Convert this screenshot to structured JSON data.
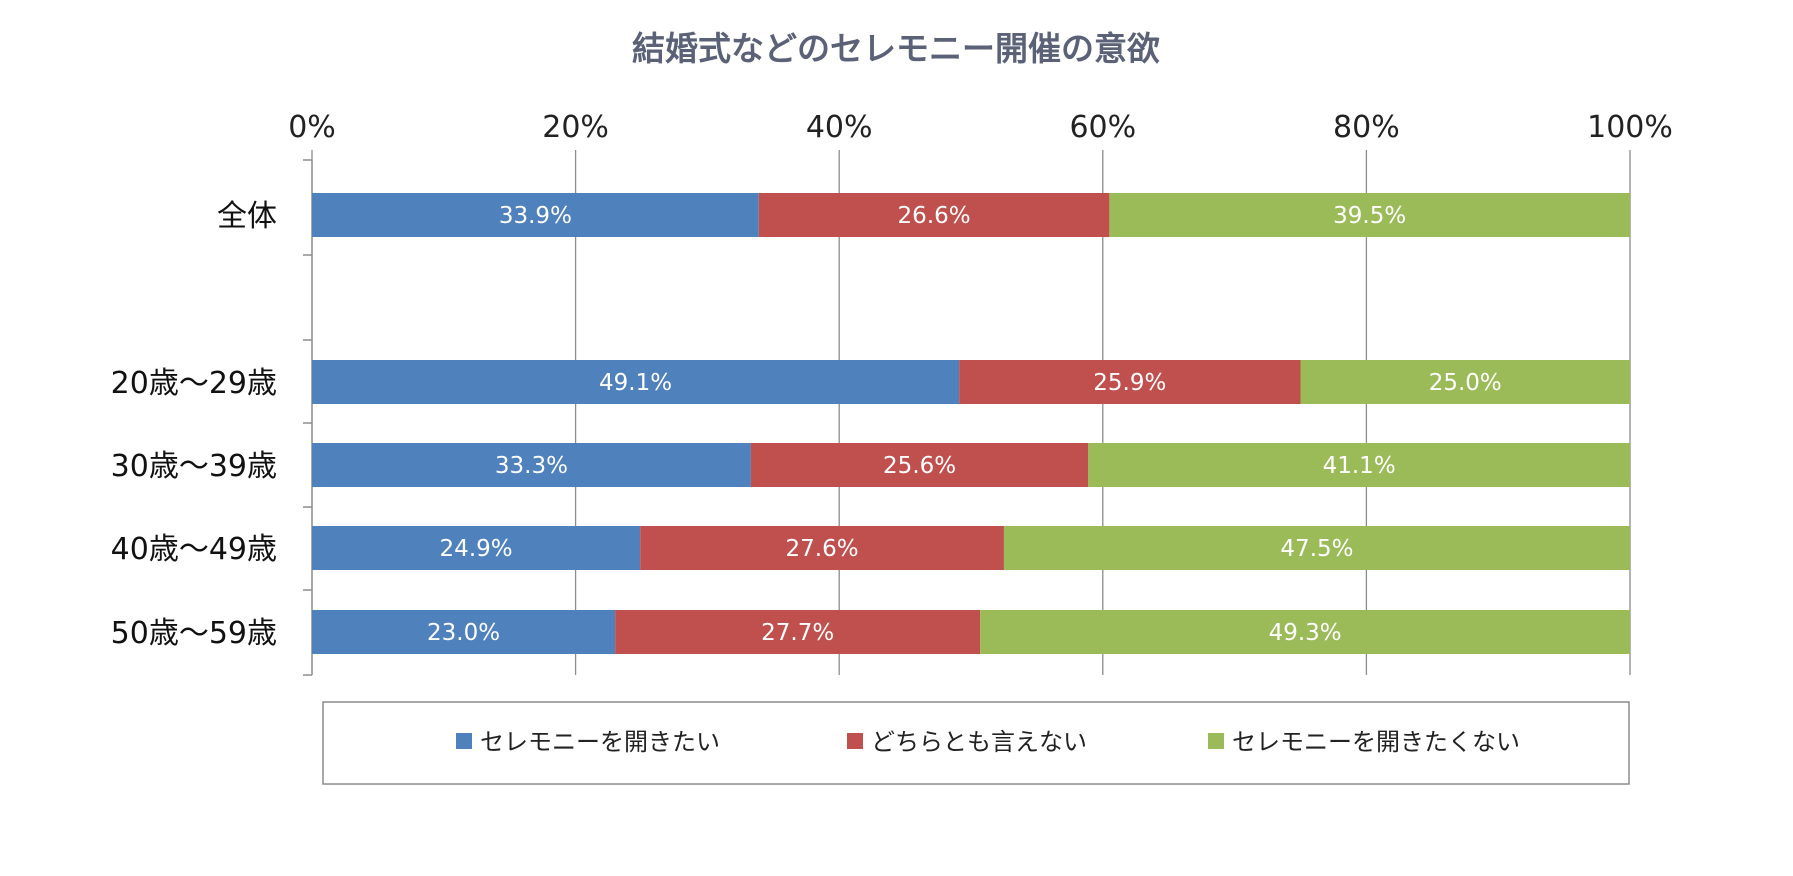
{
  "chart_data": {
    "type": "bar",
    "orientation": "horizontal",
    "stacked": "100%",
    "title": "結婚式などのセレモニー開催の意欲",
    "categories": [
      "全体",
      "20歳～29歳",
      "30歳～39歳",
      "40歳～49歳",
      "50歳～59歳"
    ],
    "series": [
      {
        "name": "セレモニーを開きたい",
        "color": "#4f81bd",
        "values": [
          33.9,
          49.1,
          33.3,
          24.9,
          23.0
        ],
        "labels": [
          "33.9%",
          "49.1%",
          "33.3%",
          "24.9%",
          "23.0%"
        ]
      },
      {
        "name": "どちらとも言えない",
        "color": "#c0504d",
        "values": [
          26.6,
          25.9,
          25.6,
          27.6,
          27.7
        ],
        "labels": [
          "26.6%",
          "25.9%",
          "25.6%",
          "27.6%",
          "27.7%"
        ]
      },
      {
        "name": "セレモニーを開きたくない",
        "color": "#9bbb59",
        "values": [
          39.5,
          25.0,
          41.1,
          47.5,
          49.3
        ],
        "labels": [
          "39.5%",
          "25.0%",
          "41.1%",
          "47.5%",
          "49.3%"
        ]
      }
    ],
    "xlim": [
      0,
      100
    ],
    "xticks": [
      "0%",
      "20%",
      "40%",
      "60%",
      "80%",
      "100%"
    ],
    "grid": true,
    "legend": "bottom"
  }
}
